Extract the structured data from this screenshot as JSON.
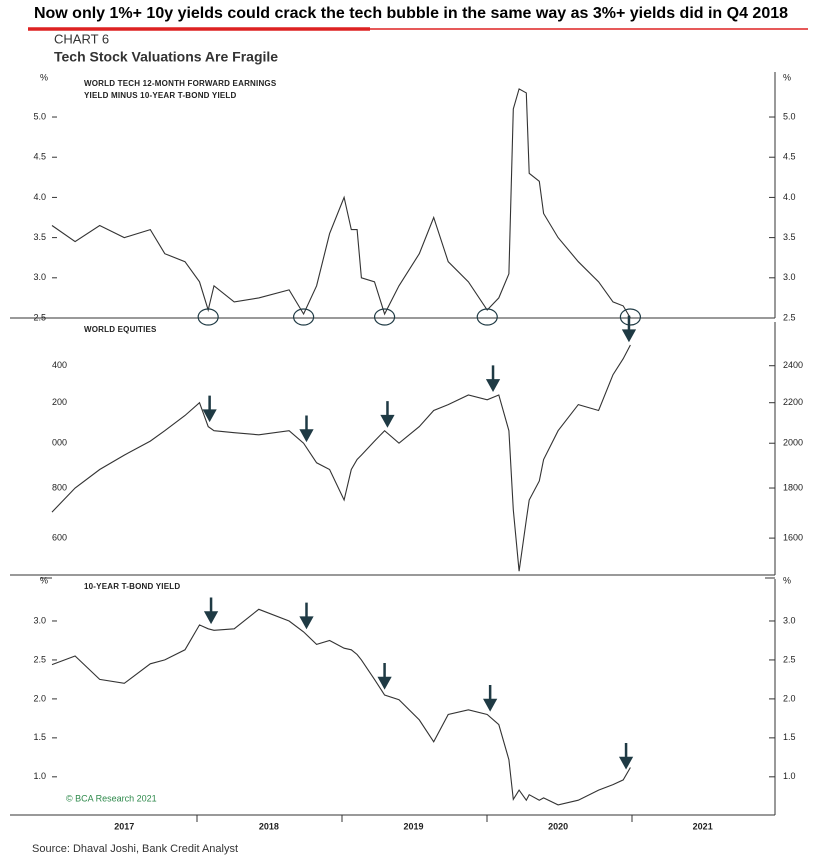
{
  "headline": "Now only 1%+ 10y yields could crack the tech bubble in the same way as 3%+ yields did in Q4 2018",
  "chart_label": "CHART 6",
  "title": "Tech Stock Valuations Are Fragile",
  "copyright": "© BCA Research 2021",
  "source": "Source: Dhaval Joshi, Bank Credit Analyst",
  "chart_data": [
    {
      "type": "line",
      "label_lines": [
        "WORLD TECH 12-MONTH FORWARD EARNINGS",
        "YIELD MINUS 10-YEAR T-BOND YIELD"
      ],
      "unit": "%",
      "color": "#333333",
      "x": [
        2017.0,
        2017.16,
        2017.33,
        2017.5,
        2017.68,
        2017.78,
        2017.92,
        2018.02,
        2018.08,
        2018.12,
        2018.26,
        2018.43,
        2018.64,
        2018.74,
        2018.83,
        2018.92,
        2019.02,
        2019.07,
        2019.11,
        2019.14,
        2019.23,
        2019.3,
        2019.4,
        2019.54,
        2019.64,
        2019.74,
        2019.88,
        2020.01,
        2020.09,
        2020.16,
        2020.19,
        2020.23,
        2020.28,
        2020.3,
        2020.37,
        2020.4,
        2020.5,
        2020.64,
        2020.78,
        2020.88,
        2020.95,
        2021.0
      ],
      "values": [
        3.65,
        3.45,
        3.65,
        3.5,
        3.6,
        3.3,
        3.2,
        2.95,
        2.6,
        2.9,
        2.7,
        2.75,
        2.85,
        2.55,
        2.9,
        3.55,
        4.0,
        3.6,
        3.6,
        3.0,
        2.95,
        2.55,
        2.9,
        3.3,
        3.75,
        3.2,
        2.95,
        2.6,
        2.75,
        3.05,
        5.1,
        5.35,
        5.3,
        4.3,
        4.2,
        3.8,
        3.5,
        3.2,
        2.95,
        2.7,
        2.65,
        2.5
      ],
      "xlim": [
        2017,
        2022
      ],
      "ylim": [
        2.5,
        5.56
      ],
      "yticks": [
        {
          "value": 2.5,
          "label": "2.5"
        },
        {
          "value": 3,
          "label": "3.0"
        },
        {
          "value": 3.5,
          "label": "3.5"
        },
        {
          "value": 4,
          "label": "4.0"
        },
        {
          "value": 4.5,
          "label": "4.5"
        },
        {
          "value": 5,
          "label": "5.0"
        }
      ],
      "circles_x": [
        2018.08,
        2018.74,
        2019.3,
        2020.01,
        2021.0
      ]
    },
    {
      "type": "line",
      "label_lines": [
        "WORLD EQUITIES"
      ],
      "color": "#333333",
      "log_scale": true,
      "x": [
        2017.0,
        2017.16,
        2017.33,
        2017.5,
        2017.68,
        2017.78,
        2017.92,
        2018.02,
        2018.08,
        2018.12,
        2018.26,
        2018.43,
        2018.64,
        2018.74,
        2018.83,
        2018.92,
        2019.02,
        2019.07,
        2019.11,
        2019.14,
        2019.23,
        2019.3,
        2019.4,
        2019.54,
        2019.64,
        2019.74,
        2019.88,
        2020.01,
        2020.09,
        2020.16,
        2020.19,
        2020.23,
        2020.28,
        2020.3,
        2020.37,
        2020.4,
        2020.5,
        2020.64,
        2020.78,
        2020.88,
        2020.95,
        2021.0
      ],
      "values": [
        1701,
        1800,
        1880,
        1945,
        2010,
        2060,
        2135,
        2200,
        2080,
        2060,
        2050,
        2040,
        2060,
        2000,
        1910,
        1880,
        1750,
        1880,
        1925,
        1945,
        2010,
        2060,
        2000,
        2080,
        2160,
        2190,
        2240,
        2215,
        2240,
        2060,
        1710,
        1480,
        1670,
        1750,
        1830,
        1925,
        2060,
        2190,
        2160,
        2350,
        2440,
        2520
      ],
      "xlim": [
        2017,
        2022
      ],
      "ylim": [
        1467,
        2685
      ],
      "yticks": [
        1600,
        1800,
        2000,
        2200,
        2400
      ],
      "yticks_left": [
        {
          "value": 1600,
          "label": "600"
        },
        {
          "value": 1800,
          "label": "800"
        },
        {
          "value": 2000,
          "label": "000"
        },
        {
          "value": 2200,
          "label": "200"
        },
        {
          "value": 2400,
          "label": "400"
        }
      ],
      "arrows_x": [
        2018.09,
        2018.76,
        2019.32,
        2020.05,
        2020.99
      ]
    },
    {
      "type": "line",
      "label_lines": [
        "10-YEAR T-BOND YIELD"
      ],
      "unit": "%",
      "color": "#333333",
      "x": [
        2017.0,
        2017.16,
        2017.33,
        2017.5,
        2017.68,
        2017.78,
        2017.92,
        2018.02,
        2018.08,
        2018.12,
        2018.26,
        2018.43,
        2018.64,
        2018.74,
        2018.83,
        2018.92,
        2019.02,
        2019.07,
        2019.11,
        2019.14,
        2019.23,
        2019.3,
        2019.4,
        2019.54,
        2019.64,
        2019.74,
        2019.88,
        2020.01,
        2020.09,
        2020.16,
        2020.19,
        2020.23,
        2020.28,
        2020.3,
        2020.37,
        2020.4,
        2020.5,
        2020.64,
        2020.78,
        2020.88,
        2020.95,
        2021.0
      ],
      "values": [
        2.44,
        2.55,
        2.25,
        2.2,
        2.45,
        2.5,
        2.63,
        2.95,
        2.9,
        2.88,
        2.9,
        3.15,
        3.0,
        2.86,
        2.7,
        2.75,
        2.65,
        2.63,
        2.57,
        2.5,
        2.25,
        2.05,
        1.99,
        1.73,
        1.45,
        1.8,
        1.86,
        1.8,
        1.67,
        1.22,
        0.71,
        0.83,
        0.7,
        0.77,
        0.7,
        0.73,
        0.64,
        0.7,
        0.83,
        0.9,
        0.96,
        1.12
      ],
      "xlim": [
        2017,
        2022
      ],
      "ylim": [
        0.51,
        3.59
      ],
      "yticks": [
        {
          "value": 1,
          "label": "1.0"
        },
        {
          "value": 1.5,
          "label": "1.5"
        },
        {
          "value": 2,
          "label": "2.0"
        },
        {
          "value": 2.5,
          "label": "2.5"
        },
        {
          "value": 3,
          "label": "3.0"
        }
      ],
      "xticks": [
        {
          "value": 2017.5,
          "label": "2017"
        },
        {
          "value": 2018.5,
          "label": "2018"
        },
        {
          "value": 2019.5,
          "label": "2019"
        },
        {
          "value": 2020.5,
          "label": "2020"
        },
        {
          "value": 2021.5,
          "label": "2021"
        }
      ],
      "arrows_x": [
        2018.1,
        2018.76,
        2019.3,
        2020.03,
        2020.97
      ]
    }
  ]
}
